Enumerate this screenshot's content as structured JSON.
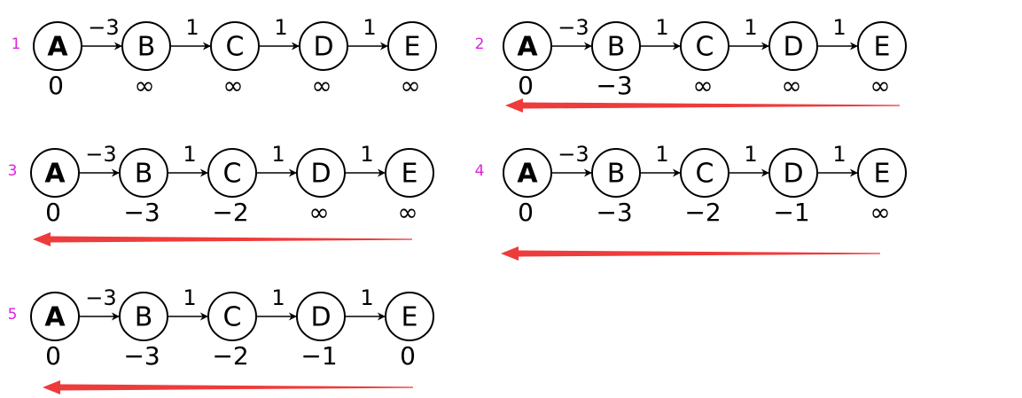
{
  "colors": {
    "node_stroke": "#000000",
    "step_number": "#e020e0",
    "relax_arrow": "#ee3b3b"
  },
  "nodes": [
    "A",
    "B",
    "C",
    "D",
    "E"
  ],
  "edge_weights": [
    "−3",
    "1",
    "1",
    "1"
  ],
  "steps": [
    {
      "number": "1",
      "distances": [
        "0",
        "∞",
        "∞",
        "∞",
        "∞"
      ],
      "relax_arrow": false
    },
    {
      "number": "2",
      "distances": [
        "0",
        "−3",
        "∞",
        "∞",
        "∞"
      ],
      "relax_arrow": true
    },
    {
      "number": "3",
      "distances": [
        "0",
        "−3",
        "−2",
        "∞",
        "∞"
      ],
      "relax_arrow": true
    },
    {
      "number": "4",
      "distances": [
        "0",
        "−3",
        "−2",
        "−1",
        "∞"
      ],
      "relax_arrow": true
    },
    {
      "number": "5",
      "distances": [
        "0",
        "−3",
        "−2",
        "−1",
        "0"
      ],
      "relax_arrow": true
    }
  ]
}
